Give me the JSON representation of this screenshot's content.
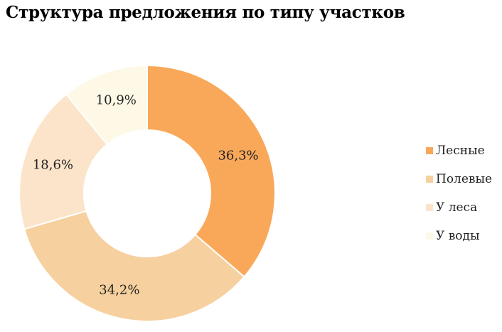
{
  "chart_data": {
    "type": "pie",
    "title": "Структура предложения по типу участков",
    "variant": "donut",
    "categories": [
      "Лесные",
      "Полевые",
      "У леса",
      "У воды"
    ],
    "values": [
      36.3,
      34.2,
      18.6,
      10.9
    ],
    "labels": [
      "36,3%",
      "34,2%",
      "18,6%",
      "10,9%"
    ],
    "colors": [
      "#F9A85A",
      "#F6D09E",
      "#FCE4CA",
      "#FEF8E6"
    ],
    "legend_position": "right",
    "start_angle": "12 o'clock",
    "direction": "clockwise"
  }
}
